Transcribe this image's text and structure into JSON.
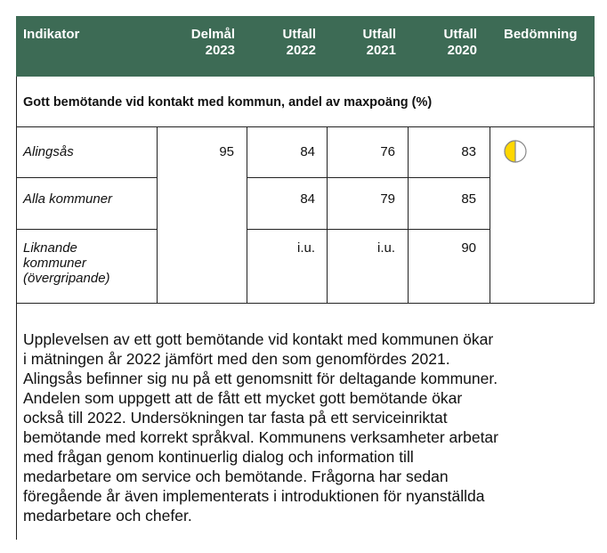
{
  "table": {
    "header": [
      "Indikator",
      "Delmål\n2023",
      "Utfall\n2022",
      "Utfall\n2021",
      "Utfall\n2020",
      "Bedömning"
    ],
    "section": "Gott bemötande vid kontakt med kommun, andel av maxpoäng (%)",
    "rows": [
      {
        "label": "Alingsås",
        "target": "95",
        "values": [
          "84",
          "76",
          "83"
        ]
      },
      {
        "label": "Alla kommuner",
        "values": [
          "84",
          "79",
          "85"
        ]
      },
      {
        "label": "Liknande\nkommuner\n(övergripande)",
        "values": [
          "i.u.",
          "i.u.",
          "90"
        ]
      }
    ],
    "paragraph": [
      "Upplevelsen av ett gott bemötande vid kontakt med kommunen ökar",
      "i mätningen år 2022 jämfört med den som genomfördes 2021.",
      "Alingsås befinner sig nu på ett genomsnitt för deltagande kommuner.",
      "Andelen som uppgett att de fått ett mycket gott bemötande ökar",
      "också till 2022. Undersökningen tar fasta på ett serviceinriktat",
      "bemötande med korrekt språkval. Kommunens verksamheter arbetar",
      "med frågan genom kontinuerlig dialog och information till",
      "medarbetare om service och bemötande. Frågorna har sedan",
      "föregående år även implementerats i introduktionen för nyanställda",
      "medarbetare och chefer."
    ]
  }
}
